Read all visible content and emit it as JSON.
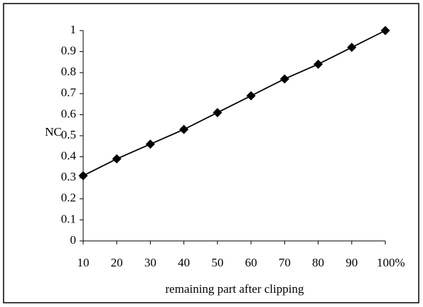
{
  "chart_data": {
    "type": "line",
    "xlabel": "remaining part after clipping",
    "ylabel": "NC",
    "x": [
      10,
      20,
      30,
      40,
      50,
      60,
      70,
      80,
      90,
      100
    ],
    "series": [
      {
        "color": "#000000",
        "values": [
          0.31,
          0.39,
          0.46,
          0.53,
          0.61,
          0.69,
          0.77,
          0.84,
          0.92,
          1.0
        ]
      }
    ],
    "xlim": [
      10,
      100
    ],
    "xticks": [
      10,
      20,
      30,
      40,
      50,
      60,
      70,
      80,
      90,
      {
        "value": 100,
        "label": "100%"
      }
    ],
    "ylim": [
      0,
      1
    ],
    "yticks": [
      0,
      0.1,
      0.2,
      0.3,
      0.4,
      0.5,
      0.6,
      0.7,
      0.8,
      0.9,
      1
    ]
  }
}
